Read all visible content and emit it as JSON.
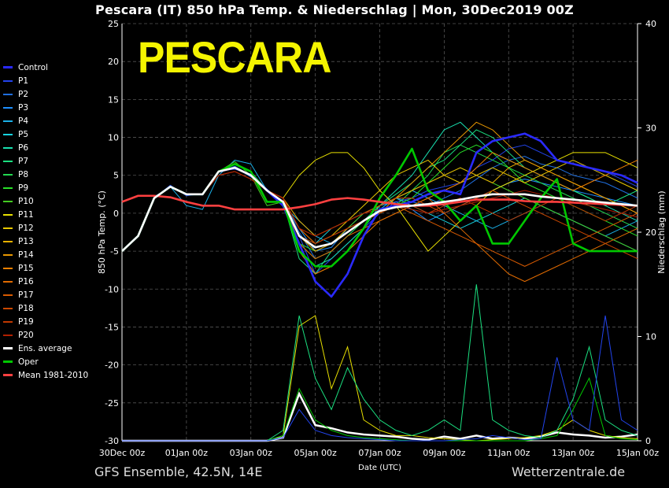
{
  "header": {
    "title": "Pescara  (IT)  850 hPa Temp. & Niederschlag | Mon, 30Dec2019 00Z"
  },
  "overlay": {
    "big_label": "PESCARA"
  },
  "footer": {
    "left": "GFS Ensemble, 42.5N, 14E",
    "right": "Wetterzentrale.de"
  },
  "colors": {
    "Control": "#2a2aff",
    "P1": "#2244ee",
    "P2": "#1f6fe0",
    "P3": "#1e90ff",
    "P4": "#1ab0e8",
    "P5": "#17d4e0",
    "P6": "#19e0b0",
    "P7": "#1be080",
    "P8": "#22d850",
    "P9": "#28e028",
    "P10": "#44cc22",
    "P11": "#e8e000",
    "P12": "#e8c800",
    "P13": "#e8b000",
    "P14": "#e89800",
    "P15": "#f08000",
    "P16": "#e06a00",
    "P17": "#d85a00",
    "P18": "#cc4800",
    "P19": "#c03800",
    "P20": "#b02000",
    "Ens. average": "#ffffff",
    "Oper": "#00c800",
    "Mean 1981-2010": "#ff4040"
  },
  "chart_data": {
    "type": "line",
    "title": "Pescara  (IT)  850 hPa Temp. & Niederschlag | Mon, 30Dec2019 00Z",
    "xlabel": "Date (UTC)",
    "ylabel": "850 hPa Temp. (°C)",
    "ylabel_right": "Niederschlag (mm)",
    "x_ticks": [
      "30Dec 00z",
      "01Jan 00z",
      "03Jan 00z",
      "05Jan 00z",
      "07Jan 00z",
      "09Jan 00z",
      "11Jan 00z",
      "13Jan 00z",
      "15Jan 00z"
    ],
    "ylim": [
      -30,
      25
    ],
    "yticks": [
      25,
      20,
      15,
      10,
      5,
      0,
      -5,
      -10,
      -15,
      -20,
      -25,
      -30
    ],
    "ylim_right": [
      0,
      40
    ],
    "yticks_right": [
      40,
      30,
      20,
      10,
      0
    ],
    "grid": true,
    "legend_position": "left",
    "legend": [
      "Control",
      "P1",
      "P2",
      "P3",
      "P4",
      "P5",
      "P6",
      "P7",
      "P8",
      "P9",
      "P10",
      "P11",
      "P12",
      "P13",
      "P14",
      "P15",
      "P16",
      "P17",
      "P18",
      "P19",
      "P20",
      "Ens. average",
      "Oper",
      "Mean 1981-2010"
    ],
    "x_days": [
      0,
      0.5,
      1,
      1.5,
      2,
      2.5,
      3,
      3.5,
      4,
      4.5,
      5,
      5.5,
      6,
      6.5,
      7,
      7.5,
      8,
      8.5,
      9,
      9.5,
      10,
      10.5,
      11,
      11.5,
      12,
      12.5,
      13,
      13.5,
      14,
      14.5,
      15,
      15.5,
      16
    ],
    "series": [
      {
        "name": "Control",
        "values": [
          -5,
          -3,
          2,
          3.5,
          2.5,
          2.5,
          5.5,
          6,
          5,
          3,
          1,
          -4,
          -9,
          -11,
          -8,
          -3,
          0.5,
          1,
          1.5,
          2.5,
          3,
          2.5,
          8,
          9.5,
          10,
          10.5,
          9.5,
          7,
          6.5,
          6,
          5.5,
          5,
          4
        ]
      },
      {
        "name": "P1",
        "values": [
          -5,
          -3,
          2,
          3.7,
          2.3,
          2.6,
          5.6,
          5.8,
          5.2,
          3.2,
          1.2,
          -3,
          -8,
          -6,
          -4,
          -2,
          0,
          1.5,
          2,
          3,
          3.5,
          4,
          6,
          7,
          8.5,
          9,
          8,
          7,
          6.5,
          6,
          5.5,
          4.5,
          3.5
        ]
      },
      {
        "name": "P2",
        "values": [
          -5,
          -3,
          2.2,
          3.4,
          2.6,
          2.4,
          5.4,
          6.2,
          5,
          3,
          1.5,
          -2.5,
          -6,
          -5,
          -3,
          -1,
          1,
          2,
          1.5,
          1,
          2,
          3,
          4.5,
          6,
          7,
          7.5,
          6.5,
          6,
          5,
          4.5,
          4,
          3,
          2
        ]
      },
      {
        "name": "P3",
        "values": [
          -5,
          -3,
          2,
          3.6,
          2.4,
          2.5,
          5.5,
          6.1,
          4.8,
          3.1,
          1.3,
          -2,
          -5,
          -4.5,
          -2,
          0,
          1,
          1.5,
          0.5,
          -1,
          0,
          1,
          2,
          3,
          4,
          4.5,
          4,
          3.5,
          3,
          2.5,
          2,
          1.5,
          1
        ]
      },
      {
        "name": "P4",
        "values": [
          -5,
          -3,
          2,
          3.5,
          1,
          0.5,
          5,
          7,
          6.5,
          3,
          1,
          -1,
          -3,
          -4,
          -2,
          -1,
          0.5,
          2,
          3,
          2,
          1,
          0,
          -1,
          -2,
          -1,
          0,
          1,
          0,
          -1,
          -2,
          -3,
          -2,
          -1
        ]
      },
      {
        "name": "P5",
        "values": [
          -5,
          -3,
          2,
          3.5,
          2.5,
          2.5,
          5.5,
          6,
          5,
          3,
          1.5,
          -3,
          -4,
          -2,
          -1,
          0,
          1,
          2,
          1,
          0,
          -1,
          -2,
          -1,
          0,
          1,
          2,
          1,
          0,
          -1,
          -2,
          -3,
          -4,
          -5
        ]
      },
      {
        "name": "P6",
        "values": [
          -5,
          -3,
          2,
          3.5,
          2.5,
          2.5,
          5.5,
          6,
          5,
          3,
          1.5,
          -5,
          -7,
          -6,
          -4,
          -2,
          1,
          3,
          5,
          8,
          11,
          12,
          10,
          8,
          7,
          6,
          5,
          4,
          3,
          2,
          1,
          0,
          -1
        ]
      },
      {
        "name": "P7",
        "values": [
          -5,
          -3,
          2,
          3.5,
          2.5,
          2.5,
          5.5,
          6,
          5,
          3,
          1.5,
          -6,
          -8,
          -5,
          -3,
          -1,
          1,
          2.5,
          4,
          6,
          7,
          9,
          11,
          10,
          8,
          6,
          5,
          4,
          3,
          2,
          1,
          2,
          3
        ]
      },
      {
        "name": "P8",
        "values": [
          -5,
          -3,
          2,
          3.5,
          2.5,
          2.5,
          5.5,
          6.5,
          5.5,
          3,
          1,
          -4,
          -6,
          -5,
          -3,
          -1,
          0,
          1,
          3,
          5,
          8,
          9,
          8,
          7,
          6,
          5,
          4,
          3,
          2,
          1,
          0,
          -1,
          -2
        ]
      },
      {
        "name": "P9",
        "values": [
          -5,
          -3,
          2,
          3.5,
          2.5,
          2.5,
          5.5,
          6,
          5,
          3,
          1.5,
          -4,
          -5,
          -4,
          -2,
          -1,
          0,
          1,
          2,
          4,
          6,
          8,
          9,
          8,
          6,
          4,
          3,
          2,
          1,
          0,
          -1,
          -2,
          -3
        ]
      },
      {
        "name": "P10",
        "values": [
          -5,
          -3,
          2,
          3.5,
          2.5,
          2.5,
          5.5,
          6.8,
          5,
          1,
          1.5,
          -3,
          -5,
          -4,
          -2,
          0,
          1,
          2,
          3,
          4,
          5,
          6,
          5,
          4,
          3,
          2,
          1,
          0,
          -1,
          -2,
          -3,
          -4,
          -5
        ]
      },
      {
        "name": "P11",
        "values": [
          -5,
          -3,
          2,
          3.5,
          2.5,
          2.5,
          5.5,
          6,
          5,
          3,
          2,
          5,
          7,
          8,
          8,
          6,
          3,
          1,
          -2,
          -5,
          -3,
          -1,
          1,
          3,
          4,
          5,
          6,
          7,
          8,
          8,
          8,
          7,
          6
        ]
      },
      {
        "name": "P12",
        "values": [
          -5,
          -3,
          2,
          3.5,
          2.5,
          2.5,
          5.5,
          6,
          5,
          3,
          2,
          -2,
          -4,
          -3,
          -1,
          1,
          3,
          5,
          6,
          7,
          5,
          4,
          5,
          6,
          5,
          4,
          5,
          6,
          7,
          6,
          5,
          4,
          3
        ]
      },
      {
        "name": "P13",
        "values": [
          -5,
          -3,
          2,
          3.5,
          2.5,
          2.5,
          5.5,
          6,
          5,
          3,
          2,
          -1,
          -3,
          -2,
          -1,
          0,
          1,
          2,
          3,
          4,
          5,
          6,
          5,
          4,
          6,
          7,
          6,
          5,
          4,
          3,
          2,
          1,
          0
        ]
      },
      {
        "name": "P14",
        "values": [
          -5,
          -3,
          2,
          3.5,
          2.5,
          2.5,
          5.5,
          6,
          5,
          3,
          2,
          -3,
          -5,
          -4,
          -2,
          -1,
          0,
          2,
          4,
          6,
          8,
          10,
          12,
          11,
          9,
          7,
          6,
          5,
          4,
          3,
          2,
          1,
          0
        ]
      },
      {
        "name": "P15",
        "values": [
          -5,
          -3,
          2,
          3.5,
          2.5,
          2.5,
          5.5,
          6,
          5,
          3,
          2,
          -5,
          -8,
          -7,
          -5,
          -3,
          -1,
          0,
          1,
          2,
          3,
          4,
          6,
          8,
          7,
          6,
          5,
          4,
          3,
          4,
          5,
          6,
          7
        ]
      },
      {
        "name": "P16",
        "values": [
          -5,
          -3,
          2,
          3.5,
          2.5,
          2.5,
          5.5,
          6,
          5,
          3,
          2,
          -4,
          -6,
          -5,
          -3,
          -2,
          -1,
          0,
          1,
          2,
          0,
          -2,
          -4,
          -6,
          -8,
          -9,
          -8,
          -7,
          -6,
          -5,
          -4,
          -3,
          -2
        ]
      },
      {
        "name": "P17",
        "values": [
          -5,
          -3,
          2,
          3.5,
          2.5,
          2.5,
          5.5,
          6,
          5,
          3,
          2,
          -2,
          -4,
          -3,
          -2,
          -1,
          0,
          1,
          0,
          -1,
          -2,
          -3,
          -4,
          -5,
          -6,
          -7,
          -6,
          -5,
          -4,
          -3,
          -2,
          -1,
          0
        ]
      },
      {
        "name": "P18",
        "values": [
          -5,
          -3,
          2,
          3.5,
          2.5,
          2.5,
          5,
          5.5,
          4.5,
          3,
          2,
          -2,
          -3,
          -2,
          -1,
          0,
          1,
          2,
          2,
          1,
          0,
          1,
          2,
          3,
          2,
          1,
          0,
          -1,
          -2,
          -3,
          -4,
          -5,
          -6
        ]
      },
      {
        "name": "P19",
        "values": [
          -5,
          -3,
          2,
          3.5,
          2.5,
          2.5,
          5,
          5.5,
          4.5,
          3,
          2,
          -3,
          -4,
          -3,
          -2,
          -1,
          0,
          1,
          1,
          0,
          1,
          2,
          1,
          0,
          -1,
          0,
          1,
          2,
          1,
          0,
          -1,
          0,
          1
        ]
      },
      {
        "name": "P20",
        "values": [
          -5,
          -3,
          2,
          3.5,
          2.5,
          2.5,
          5,
          5.5,
          4.5,
          3,
          2,
          -2,
          -3,
          -2,
          -1,
          0,
          0.5,
          1,
          0.5,
          0,
          0.5,
          1,
          1.5,
          2,
          2.5,
          3,
          2.5,
          2,
          1.5,
          1,
          0.5,
          0,
          -0.5
        ]
      },
      {
        "name": "Ens. average",
        "values": [
          -5,
          -3,
          2,
          3.5,
          2.5,
          2.5,
          5.5,
          6,
          5,
          3,
          1.5,
          -3,
          -4.5,
          -4,
          -2.5,
          -1,
          0.3,
          0.8,
          1,
          1.2,
          1.5,
          1.8,
          2.2,
          2.5,
          2.5,
          2.5,
          2.2,
          2,
          1.8,
          1.6,
          1.4,
          1.2,
          1
        ]
      },
      {
        "name": "Oper",
        "values": [
          -5,
          -3,
          2,
          3.5,
          2.5,
          2.5,
          5.5,
          6.5,
          5.5,
          1.5,
          1.5,
          -5,
          -7,
          -7,
          -5,
          -2,
          2,
          5,
          8.5,
          3,
          1.5,
          -1,
          1,
          -4,
          -4,
          -1,
          2,
          4.5,
          -4,
          -5,
          -5,
          -5,
          -5
        ]
      },
      {
        "name": "Mean 1981-2010",
        "values": [
          1.5,
          2.3,
          2.3,
          2.1,
          1.5,
          1,
          1,
          0.5,
          0.5,
          0.5,
          0.5,
          0.8,
          1.2,
          1.8,
          2,
          1.8,
          1.5,
          1.2,
          1,
          1,
          1.2,
          1.5,
          1.8,
          1.8,
          1.8,
          1.6,
          1.5,
          1.5,
          1.4,
          1.3,
          1.2,
          1.1,
          1
        ]
      }
    ],
    "precipitation": {
      "unit": "mm",
      "series": [
        {
          "name": "Ens. average",
          "values": [
            0,
            0,
            0,
            0,
            0,
            0,
            0,
            0,
            0,
            0,
            0.3,
            4.5,
            1.5,
            1.2,
            0.8,
            0.6,
            0.5,
            0.4,
            0.2,
            0.1,
            0.4,
            0.2,
            0.5,
            0.2,
            0.3,
            0.2,
            0.4,
            0.8,
            0.6,
            0.5,
            0.3,
            0.4,
            0.6
          ]
        },
        {
          "name": "P11",
          "values": [
            0,
            0,
            0,
            0,
            0,
            0,
            0,
            0,
            0,
            0,
            0.5,
            11,
            12,
            5,
            9,
            2,
            1,
            0.5,
            0.5,
            0.3,
            0.2,
            0.1,
            0,
            0.1,
            0.2,
            0.3,
            0.5,
            1,
            2,
            1,
            0.5,
            0.3,
            0.2
          ]
        },
        {
          "name": "P7",
          "values": [
            0,
            0,
            0,
            0,
            0,
            0,
            0,
            0,
            0,
            0,
            1,
            12,
            6,
            3,
            7,
            4,
            2,
            1,
            0.5,
            1,
            2,
            1,
            15,
            2,
            1,
            0.5,
            0.3,
            1,
            4,
            9,
            2,
            1,
            0.5
          ]
        },
        {
          "name": "Oper",
          "values": [
            0,
            0,
            0,
            0,
            0,
            0,
            0,
            0,
            0,
            0,
            0.5,
            5,
            2,
            1,
            0.5,
            0.3,
            0.2,
            0.1,
            0,
            0,
            0,
            0,
            0,
            0,
            0,
            0,
            0.2,
            0.5,
            3,
            6,
            0.5,
            0.2,
            0.1
          ]
        },
        {
          "name": "P1",
          "values": [
            0,
            0,
            0,
            0,
            0,
            0,
            0,
            0,
            0,
            0,
            0.3,
            3,
            1,
            0.5,
            0.3,
            0.2,
            0.1,
            0,
            0,
            0,
            0,
            0.1,
            0.2,
            0.5,
            0.3,
            0.1,
            0.2,
            8,
            2,
            1,
            12,
            2,
            1
          ]
        }
      ]
    }
  }
}
